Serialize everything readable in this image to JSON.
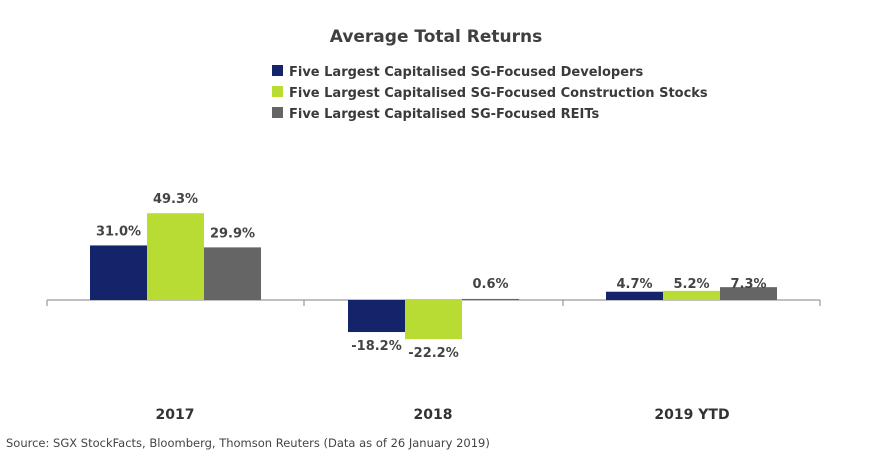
{
  "chart_data": {
    "type": "bar",
    "title": "Average Total Returns",
    "categories": [
      "2017",
      "2018",
      "2019 YTD"
    ],
    "series": [
      {
        "name": "Five Largest Capitalised SG-Focused Developers",
        "color": "#14246b",
        "values": [
          31.0,
          -18.2,
          4.7
        ],
        "labels": [
          "31.0%",
          "-18.2%",
          "4.7%"
        ]
      },
      {
        "name": "Five Largest Capitalised SG-Focused Construction Stocks",
        "color": "#b8dc34",
        "values": [
          49.3,
          -22.2,
          5.2
        ],
        "labels": [
          "49.3%",
          "-22.2%",
          "5.2%"
        ]
      },
      {
        "name": "Five Largest Capitalised SG-Focused REITs",
        "color": "#656565",
        "values": [
          29.9,
          0.6,
          7.3
        ],
        "labels": [
          "29.9%",
          "0.6%",
          "7.3%"
        ]
      }
    ],
    "legend_position": "top",
    "grid": false,
    "source": "Source: SGX StockFacts, Bloomberg, Thomson Reuters (Data as of 26 January 2019)"
  }
}
